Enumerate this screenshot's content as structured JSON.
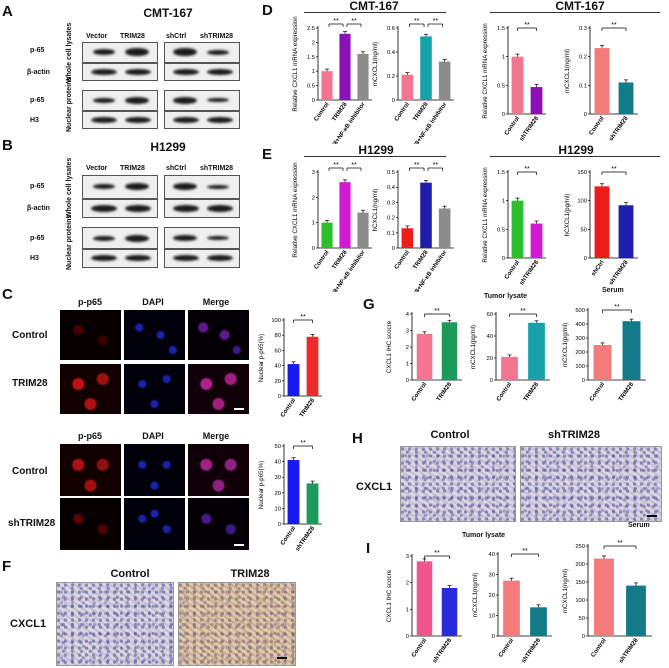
{
  "panels": {
    "A": "A",
    "B": "B",
    "C": "C",
    "D": "D",
    "E": "E",
    "F": "F",
    "G": "G",
    "H": "H",
    "I": "I"
  },
  "blot_A": {
    "title": "CMT-167",
    "lanes": [
      "Vector",
      "TRIM28",
      "shCtrl",
      "shTRIM28"
    ],
    "rows": [
      "p-65",
      "β-actin",
      "p-65",
      "H3"
    ],
    "side_labels": [
      "Whole cell lysates",
      "Nuclear proteins"
    ]
  },
  "blot_B": {
    "title": "H1299",
    "lanes": [
      "Vector",
      "TRIM28",
      "shCtrl",
      "shTRIM28"
    ],
    "rows": [
      "p-65",
      "β-actin",
      "p-65",
      "H3"
    ],
    "side_labels": [
      "Whole cell lysates",
      "Nuclear proteins"
    ]
  },
  "micro_C": {
    "cols": [
      "p-p65",
      "DAPI",
      "Merge"
    ],
    "rows_top": [
      "Control",
      "TRIM28"
    ],
    "rows_bottom": [
      "Control",
      "shTRIM28"
    ]
  },
  "titles": {
    "D_left": "CMT-167",
    "D_right": "CMT-167",
    "E_left": "H1299",
    "E_right": "H1299",
    "G_tumor": "Tumor lysate",
    "G_serum": "Serum",
    "I_tumor": "Tumor lysate",
    "I_serum": "Serum"
  },
  "ihc": {
    "F": [
      "Control",
      "TRIM28"
    ],
    "F_row": "CXCL1",
    "H": [
      "Control",
      "shTRIM28"
    ],
    "H_row": "CXCL1"
  },
  "colors": {
    "pink": "#f4758f",
    "purple": "#8b10b8",
    "gray": "#8c8c8c",
    "teal": "#16a2a8",
    "salmon": "#f47b7b",
    "darkteal": "#137a8a",
    "green": "#2bbf2b",
    "magenta": "#d21ad2",
    "red": "#ee1b1b",
    "navy": "#1e1ea8",
    "blue": "#1818f0",
    "darkgreen": "#1b9a5a",
    "hotpink": "#f0568c",
    "deepblue": "#2a2adf"
  },
  "chart_data": [
    {
      "id": "C1",
      "type": "bar",
      "categories": [
        "Control",
        "TRIM28"
      ],
      "values": [
        42,
        78
      ],
      "ylabel": "Nuclear p-p65(%)",
      "ylim": [
        0,
        100
      ],
      "ticks": [
        0,
        20,
        40,
        60,
        80,
        100
      ],
      "sig": [
        "**"
      ],
      "colors": [
        "#1818f0",
        "#ee2b2b"
      ]
    },
    {
      "id": "C2",
      "type": "bar",
      "categories": [
        "Control",
        "shTRIM28"
      ],
      "values": [
        41,
        26
      ],
      "ylabel": "Nuclear p-p65(%)",
      "ylim": [
        0,
        50
      ],
      "ticks": [
        0,
        10,
        20,
        30,
        40,
        50
      ],
      "sig": [
        "**"
      ],
      "colors": [
        "#1818f0",
        "#1b9a5a"
      ]
    },
    {
      "id": "D1",
      "type": "bar",
      "categories": [
        "Control",
        "TRIM28",
        "TRIM28+NF-κB inhibitor"
      ],
      "values": [
        1.0,
        2.3,
        1.6
      ],
      "ylabel": "Relative CXCL1 mRNA expression",
      "ylim": [
        0,
        2.5
      ],
      "ticks": [
        0,
        0.5,
        1.0,
        1.5,
        2.0,
        2.5
      ],
      "sig": [
        "**",
        "**"
      ],
      "colors": [
        "#f4758f",
        "#8b10b8",
        "#8c8c8c"
      ]
    },
    {
      "id": "D2",
      "type": "bar",
      "categories": [
        "Control",
        "TRIM28",
        "TRIM28+NF-κB inhibitor"
      ],
      "values": [
        0.21,
        0.53,
        0.32
      ],
      "ylabel": "mCXCL1(ng/ml)",
      "ylim": [
        0,
        0.6
      ],
      "ticks": [
        0,
        0.2,
        0.4,
        0.6
      ],
      "sig": [
        "**",
        "**"
      ],
      "colors": [
        "#f4758f",
        "#16a2a8",
        "#8c8c8c"
      ]
    },
    {
      "id": "D3",
      "type": "bar",
      "categories": [
        "Control",
        "shTRIM28"
      ],
      "values": [
        1.0,
        0.47
      ],
      "ylabel": "Relative CXCL1 mRNA expression",
      "ylim": [
        0,
        1.5
      ],
      "ticks": [
        0,
        0.5,
        1.0,
        1.5
      ],
      "sig": [
        "**"
      ],
      "colors": [
        "#f4758f",
        "#8b10b8"
      ]
    },
    {
      "id": "D4",
      "type": "bar",
      "categories": [
        "Control",
        "shTRIM28"
      ],
      "values": [
        0.23,
        0.11
      ],
      "ylabel": "mCXCL1(ng/ml)",
      "ylim": [
        0,
        0.3
      ],
      "ticks": [
        0,
        0.1,
        0.2,
        0.3
      ],
      "sig": [
        "**"
      ],
      "colors": [
        "#f47b7b",
        "#137a8a"
      ]
    },
    {
      "id": "E1",
      "type": "bar",
      "categories": [
        "Control",
        "TRIM28",
        "TRIM28+NF-κB inhibitor"
      ],
      "values": [
        1.0,
        2.6,
        1.4
      ],
      "ylabel": "Relative CXCL1 mRNA expression",
      "ylim": [
        0,
        3
      ],
      "ticks": [
        0,
        1,
        2,
        3
      ],
      "sig": [
        "**",
        "**"
      ],
      "colors": [
        "#2bbf2b",
        "#d21ad2",
        "#8c8c8c"
      ]
    },
    {
      "id": "E2",
      "type": "bar",
      "categories": [
        "Control",
        "TRIM28",
        "TRIM28+NF-κB inhibitor"
      ],
      "values": [
        0.13,
        0.43,
        0.26
      ],
      "ylabel": "hCXCL1(ng/ml)",
      "ylim": [
        0,
        0.5
      ],
      "ticks": [
        0,
        0.1,
        0.2,
        0.3,
        0.4,
        0.5
      ],
      "sig": [
        "**",
        "**"
      ],
      "colors": [
        "#ee1b1b",
        "#1e1ea8",
        "#8c8c8c"
      ]
    },
    {
      "id": "E3",
      "type": "bar",
      "categories": [
        "Control",
        "shTRIM28"
      ],
      "values": [
        1.0,
        0.6
      ],
      "ylabel": "Relative CXCL1 mRNA expression",
      "ylim": [
        0,
        1.5
      ],
      "ticks": [
        0,
        0.5,
        1.0,
        1.5
      ],
      "sig": [
        "**"
      ],
      "colors": [
        "#2bbf2b",
        "#d21ad2"
      ]
    },
    {
      "id": "E4",
      "type": "bar",
      "categories": [
        "shCtrl",
        "shTRIM28"
      ],
      "values": [
        125,
        92
      ],
      "ylabel": "hCXCL1(pg/ml)",
      "ylim": [
        0,
        150
      ],
      "ticks": [
        0,
        50,
        100,
        150
      ],
      "sig": [
        "**"
      ],
      "colors": [
        "#ee1b1b",
        "#1e1ea8"
      ]
    },
    {
      "id": "G1",
      "type": "bar",
      "categories": [
        "Control",
        "TRIM28"
      ],
      "values": [
        2.8,
        3.5
      ],
      "ylabel": "CXCL1 IHC scocre",
      "ylim": [
        0,
        4
      ],
      "ticks": [
        0,
        1,
        2,
        3,
        4
      ],
      "sig": [
        "**"
      ],
      "colors": [
        "#f4758f",
        "#1b9a5a"
      ]
    },
    {
      "id": "G2",
      "type": "bar",
      "categories": [
        "Control",
        "TRIM28"
      ],
      "values": [
        21,
        52
      ],
      "ylabel": "mCXCL1(pg/ml)",
      "ylim": [
        0,
        60
      ],
      "ticks": [
        0,
        20,
        40,
        60
      ],
      "sig": [
        "**"
      ],
      "colors": [
        "#f4758f",
        "#16a2a8"
      ]
    },
    {
      "id": "G3",
      "type": "bar",
      "categories": [
        "Control",
        "TRIM28"
      ],
      "values": [
        250,
        420
      ],
      "ylabel": "mCXCL1(pg/ml)",
      "ylim": [
        0,
        500
      ],
      "ticks": [
        0,
        100,
        200,
        300,
        400,
        500
      ],
      "sig": [
        "**"
      ],
      "colors": [
        "#f47b7b",
        "#137a8a"
      ]
    },
    {
      "id": "I1",
      "type": "bar",
      "categories": [
        "Control",
        "shTRIM28"
      ],
      "values": [
        2.8,
        1.8
      ],
      "ylabel": "CXCL1 IHC scocre",
      "ylim": [
        0,
        3
      ],
      "ticks": [
        0,
        1,
        2,
        3
      ],
      "sig": [
        "**"
      ],
      "colors": [
        "#f0568c",
        "#2a2adf"
      ]
    },
    {
      "id": "I2",
      "type": "bar",
      "categories": [
        "Control",
        "shTRIM28"
      ],
      "values": [
        27,
        14
      ],
      "ylabel": "mCXCL1(ng/ml)",
      "ylim": [
        0,
        40
      ],
      "ticks": [
        0,
        10,
        20,
        30,
        40
      ],
      "sig": [
        "**"
      ],
      "colors": [
        "#f47b7b",
        "#137a8a"
      ]
    },
    {
      "id": "I3",
      "type": "bar",
      "categories": [
        "Control",
        "shTRIM28"
      ],
      "values": [
        215,
        140
      ],
      "ylabel": "mCXCL1(ng/ml)",
      "ylim": [
        0,
        250
      ],
      "ticks": [
        0,
        50,
        100,
        150,
        200,
        250
      ],
      "sig": [
        "**"
      ],
      "colors": [
        "#f47b7b",
        "#137a8a"
      ]
    }
  ]
}
